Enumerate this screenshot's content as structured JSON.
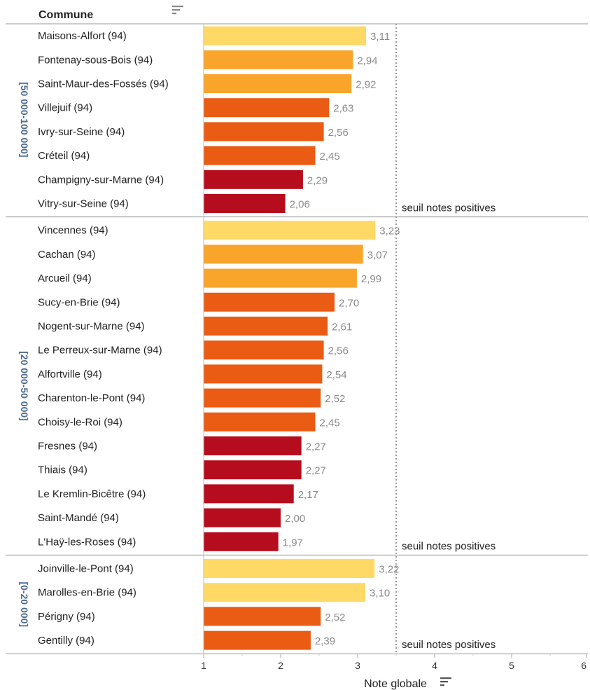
{
  "header": {
    "row_field": "Commune"
  },
  "colors": {
    "high": "#ffd966",
    "mid_high": "#f9a52c",
    "mid": "#ea5b14",
    "low": "#b50d1e",
    "group_label": "#4e6b8e",
    "threshold_line": "#9a9a9a"
  },
  "icons": {
    "sort_header": "sort-bars-icon",
    "sort_axis": "sort-bars-icon"
  },
  "chart_data": {
    "type": "bar",
    "orientation": "horizontal",
    "xlabel": "Note globale",
    "xlim": [
      0,
      6
    ],
    "xticks": [
      "1",
      "2",
      "3",
      "4",
      "5",
      "6"
    ],
    "threshold": {
      "value": 3.5,
      "label": "seuil notes positives"
    },
    "groups": [
      {
        "name": "[50 000-100 000]",
        "rows": [
          {
            "label": "Maisons-Alfort (94)",
            "value": 3.11,
            "display": "3,11",
            "color": "high"
          },
          {
            "label": "Fontenay-sous-Bois (94)",
            "value": 2.94,
            "display": "2,94",
            "color": "mid_high"
          },
          {
            "label": "Saint-Maur-des-Fossés (94)",
            "value": 2.92,
            "display": "2,92",
            "color": "mid_high"
          },
          {
            "label": "Villejuif (94)",
            "value": 2.63,
            "display": "2,63",
            "color": "mid"
          },
          {
            "label": "Ivry-sur-Seine (94)",
            "value": 2.56,
            "display": "2,56",
            "color": "mid"
          },
          {
            "label": "Créteil (94)",
            "value": 2.45,
            "display": "2,45",
            "color": "mid"
          },
          {
            "label": "Champigny-sur-Marne (94)",
            "value": 2.29,
            "display": "2,29",
            "color": "low"
          },
          {
            "label": "Vitry-sur-Seine (94)",
            "value": 2.06,
            "display": "2,06",
            "color": "low"
          }
        ]
      },
      {
        "name": "[20 000-50 000]",
        "rows": [
          {
            "label": "Vincennes (94)",
            "value": 3.23,
            "display": "3,23",
            "color": "high"
          },
          {
            "label": "Cachan (94)",
            "value": 3.07,
            "display": "3,07",
            "color": "mid_high"
          },
          {
            "label": "Arcueil (94)",
            "value": 2.99,
            "display": "2,99",
            "color": "mid_high"
          },
          {
            "label": "Sucy-en-Brie (94)",
            "value": 2.7,
            "display": "2,70",
            "color": "mid"
          },
          {
            "label": "Nogent-sur-Marne (94)",
            "value": 2.61,
            "display": "2,61",
            "color": "mid"
          },
          {
            "label": "Le Perreux-sur-Marne (94)",
            "value": 2.56,
            "display": "2,56",
            "color": "mid"
          },
          {
            "label": "Alfortville (94)",
            "value": 2.54,
            "display": "2,54",
            "color": "mid"
          },
          {
            "label": "Charenton-le-Pont (94)",
            "value": 2.52,
            "display": "2,52",
            "color": "mid"
          },
          {
            "label": "Choisy-le-Roi (94)",
            "value": 2.45,
            "display": "2,45",
            "color": "mid"
          },
          {
            "label": "Fresnes (94)",
            "value": 2.27,
            "display": "2,27",
            "color": "low"
          },
          {
            "label": "Thiais (94)",
            "value": 2.27,
            "display": "2,27",
            "color": "low"
          },
          {
            "label": "Le Kremlin-Bicêtre (94)",
            "value": 2.17,
            "display": "2,17",
            "color": "low"
          },
          {
            "label": "Saint-Mandé (94)",
            "value": 2.0,
            "display": "2,00",
            "color": "low"
          },
          {
            "label": "L'Haÿ-les-Roses (94)",
            "value": 1.97,
            "display": "1,97",
            "color": "low"
          }
        ]
      },
      {
        "name": "[0-20 000]",
        "rows": [
          {
            "label": "Joinville-le-Pont (94)",
            "value": 3.22,
            "display": "3,22",
            "color": "high"
          },
          {
            "label": "Marolles-en-Brie (94)",
            "value": 3.1,
            "display": "3,10",
            "color": "high"
          },
          {
            "label": "Périgny (94)",
            "value": 2.52,
            "display": "2,52",
            "color": "mid"
          },
          {
            "label": "Gentilly (94)",
            "value": 2.39,
            "display": "2,39",
            "color": "mid"
          }
        ]
      }
    ]
  }
}
